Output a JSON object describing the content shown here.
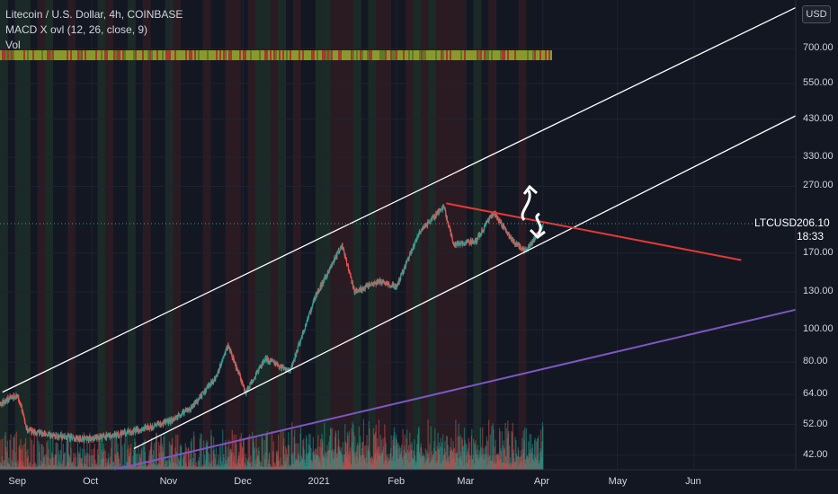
{
  "legend": {
    "symbol": "Litecoin / U.S. Dollar, 4h, COINBASE",
    "indicator": "MACD X ovl (12, 26, close, 9)",
    "volume": "Vol"
  },
  "currency": "USD",
  "price_tag": {
    "symbol": "LTCUSD",
    "price": "206.10",
    "countdown": "18:33"
  },
  "chart_data": {
    "type": "candlestick",
    "y_scale": "log",
    "y_range": [
      38,
      980
    ],
    "x_range": [
      "2020-08-25",
      "2021-07-12"
    ],
    "y_ticks": [
      "700.00",
      "550.00",
      "430.00",
      "330.00",
      "270.00",
      "170.00",
      "130.00",
      "100.00",
      "80.00",
      "64.00",
      "52.00",
      "42.00"
    ],
    "x_ticks": [
      "Sep",
      "Oct",
      "Nov",
      "Dec",
      "2021",
      "Feb",
      "Mar",
      "Apr",
      "May",
      "Jun"
    ],
    "last_price": 206.1,
    "price_path": [
      [
        "2020-08-25",
        60
      ],
      [
        "2020-09-01",
        64
      ],
      [
        "2020-09-05",
        50
      ],
      [
        "2020-09-15",
        48
      ],
      [
        "2020-10-01",
        47
      ],
      [
        "2020-10-20",
        50
      ],
      [
        "2020-11-01",
        53
      ],
      [
        "2020-11-10",
        58
      ],
      [
        "2020-11-20",
        72
      ],
      [
        "2020-11-25",
        90
      ],
      [
        "2020-12-02",
        65
      ],
      [
        "2020-12-10",
        82
      ],
      [
        "2020-12-20",
        75
      ],
      [
        "2020-12-30",
        125
      ],
      [
        "2021-01-10",
        180
      ],
      [
        "2021-01-15",
        130
      ],
      [
        "2021-01-25",
        140
      ],
      [
        "2021-02-01",
        135
      ],
      [
        "2021-02-10",
        195
      ],
      [
        "2021-02-20",
        235
      ],
      [
        "2021-02-24",
        180
      ],
      [
        "2021-03-05",
        185
      ],
      [
        "2021-03-12",
        225
      ],
      [
        "2021-03-20",
        185
      ],
      [
        "2021-03-25",
        172
      ],
      [
        "2021-04-01",
        206
      ]
    ],
    "drawings": [
      {
        "name": "channel-upper",
        "color": "#ffffff",
        "from": [
          "2020-08-26",
          65
        ],
        "to": [
          "2021-07-12",
          930
        ]
      },
      {
        "name": "channel-lower",
        "color": "#ffffff",
        "from": [
          "2020-10-18",
          44
        ],
        "to": [
          "2021-07-12",
          440
        ]
      },
      {
        "name": "resistance-line",
        "color": "#e53935",
        "from": [
          "2021-02-21",
          240
        ],
        "to": [
          "2021-06-20",
          162
        ]
      },
      {
        "name": "long-term-support",
        "color": "#7e57c2",
        "from": [
          "2020-10-10",
          38
        ],
        "to": [
          "2021-07-12",
          115
        ]
      }
    ],
    "colors": {
      "up": "#26a69a",
      "down": "#ef5350",
      "volume_up": "#26a69a",
      "volume_down": "#ef5350",
      "background": "#131722"
    }
  }
}
